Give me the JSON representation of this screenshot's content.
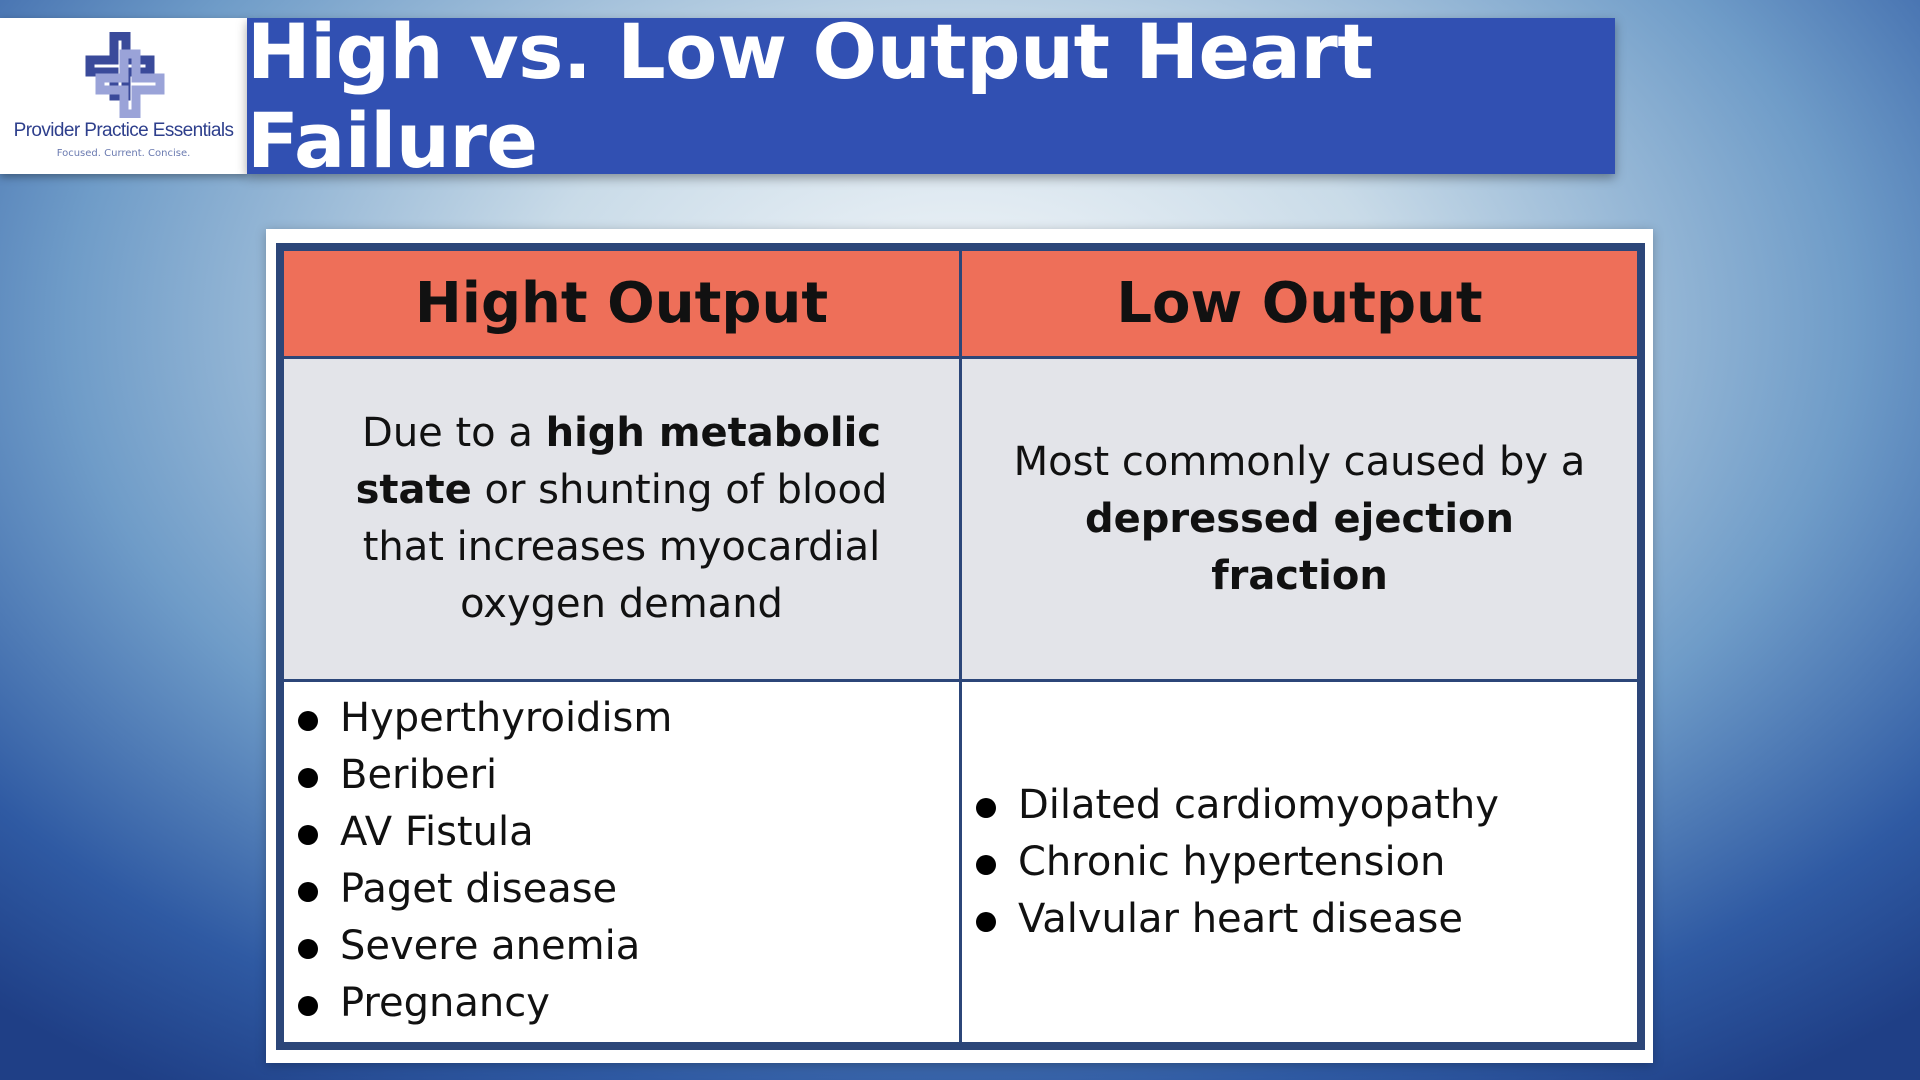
{
  "logo": {
    "name": "Provider Practice Essentials",
    "tagline": "Focused. Current. Concise."
  },
  "header": {
    "title": "High vs. Low Output Heart Failure"
  },
  "table": {
    "columns": [
      "Hight Output",
      "Low Output"
    ],
    "descriptions": [
      [
        {
          "text": "Due to a ",
          "bold": false
        },
        {
          "text": "high metabolic state",
          "bold": true
        },
        {
          "text": " or shunting of blood that increases myocardial oxygen demand",
          "bold": false
        }
      ],
      [
        {
          "text": "Most commonly caused by a ",
          "bold": false
        },
        {
          "text": "depressed ejection fraction",
          "bold": true
        }
      ]
    ],
    "lists": [
      [
        "Hyperthyroidism",
        "Beriberi",
        "AV Fistula",
        "Paget disease",
        "Severe anemia",
        "Pregnancy"
      ],
      [
        "Dilated cardiomyopathy",
        "Chronic hypertension",
        "Valvular heart disease"
      ]
    ]
  }
}
